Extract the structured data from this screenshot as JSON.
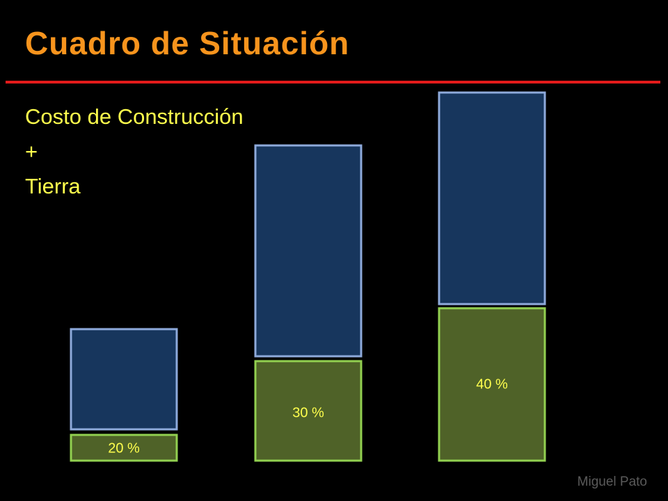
{
  "title": "Cuadro de Situación",
  "subtitle_lines": [
    "Costo de Construcción",
    "+",
    "Tierra"
  ],
  "bars": [
    {
      "label": "20 %"
    },
    {
      "label": "30 %"
    },
    {
      "label": "40 %"
    }
  ],
  "footer": "Miguel Pato"
}
